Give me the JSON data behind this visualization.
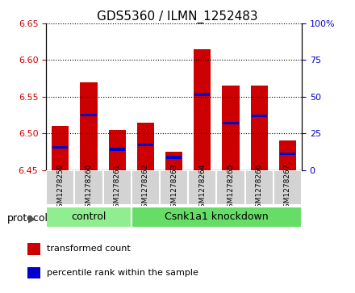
{
  "title": "GDS5360 / ILMN_1252483",
  "samples": [
    "GSM1278259",
    "GSM1278260",
    "GSM1278261",
    "GSM1278262",
    "GSM1278263",
    "GSM1278264",
    "GSM1278265",
    "GSM1278266",
    "GSM1278267"
  ],
  "bar_bottoms": [
    6.45,
    6.45,
    6.45,
    6.45,
    6.45,
    6.45,
    6.45,
    6.45,
    6.45
  ],
  "bar_tops": [
    6.51,
    6.57,
    6.505,
    6.515,
    6.475,
    6.615,
    6.565,
    6.565,
    6.49
  ],
  "blue_positions": [
    6.481,
    6.525,
    6.478,
    6.484,
    6.467,
    6.553,
    6.514,
    6.524,
    6.472
  ],
  "ylim": [
    6.45,
    6.65
  ],
  "yticks": [
    6.45,
    6.5,
    6.55,
    6.6,
    6.65
  ],
  "right_yticks": [
    0,
    25,
    50,
    75,
    100
  ],
  "right_ytick_positions": [
    6.45,
    6.5,
    6.55,
    6.6,
    6.65
  ],
  "bar_color": "#cc0000",
  "blue_color": "#0000cc",
  "bar_width": 0.6,
  "grid_color": "#000000",
  "background_color": "#ffffff",
  "plot_bg_color": "#ffffff",
  "tick_label_color_left": "#cc0000",
  "tick_label_color_right": "#0000cc",
  "protocol_groups": [
    {
      "label": "control",
      "start": 0,
      "end": 3,
      "color": "#90ee90"
    },
    {
      "label": "Csnk1a1 knockdown",
      "start": 3,
      "end": 9,
      "color": "#66dd66"
    }
  ],
  "protocol_label": "protocol",
  "legend_items": [
    {
      "label": "transformed count",
      "color": "#cc0000"
    },
    {
      "label": "percentile rank within the sample",
      "color": "#0000cc"
    }
  ],
  "xlabel_bg": "#cccccc"
}
